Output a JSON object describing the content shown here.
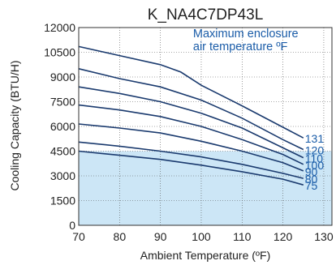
{
  "chart_data": {
    "type": "line",
    "title": "K_NA4C7DP43L",
    "xlabel": "Ambient Temperature (ºF)",
    "ylabel": "Cooling Capacity (BTU/H)",
    "xlim": [
      70,
      132
    ],
    "ylim": [
      0,
      12000
    ],
    "x_ticks": [
      70,
      80,
      90,
      100,
      110,
      120,
      130
    ],
    "y_ticks": [
      0,
      1500,
      3000,
      4500,
      6000,
      7500,
      9000,
      10500,
      12000
    ],
    "grid": true,
    "shaded_region_upper": 4500,
    "annotation": {
      "lines": [
        "Maximum enclosure",
        "air temperature ºF"
      ],
      "x": 98,
      "y": 11400
    },
    "colors": {
      "line": "#1a3a6e",
      "label": "#1a5ca8",
      "shade": "#cce6f6",
      "grid": "#555555",
      "text": "#222222"
    },
    "series": [
      {
        "name": "131",
        "x": [
          70,
          80,
          90,
          95,
          100,
          110,
          120,
          125
        ],
        "values": [
          10850,
          10300,
          9750,
          9300,
          8500,
          7250,
          5950,
          5300
        ]
      },
      {
        "name": "120",
        "x": [
          70,
          80,
          90,
          100,
          110,
          120,
          125
        ],
        "values": [
          9500,
          8900,
          8400,
          7600,
          6500,
          5200,
          4600
        ]
      },
      {
        "name": "110",
        "x": [
          70,
          80,
          90,
          100,
          110,
          120,
          125
        ],
        "values": [
          8400,
          8000,
          7500,
          6800,
          5900,
          4700,
          4100
        ]
      },
      {
        "name": "100",
        "x": [
          70,
          80,
          90,
          100,
          110,
          120,
          125
        ],
        "values": [
          7300,
          7000,
          6600,
          6000,
          5200,
          4300,
          3700
        ]
      },
      {
        "name": "90",
        "x": [
          70,
          80,
          90,
          100,
          110,
          120,
          125
        ],
        "values": [
          6150,
          5900,
          5600,
          5100,
          4500,
          3800,
          3300
        ]
      },
      {
        "name": "80",
        "x": [
          70,
          80,
          90,
          100,
          110,
          120,
          125
        ],
        "values": [
          5050,
          4800,
          4500,
          4150,
          3700,
          3150,
          2850
        ]
      },
      {
        "name": "75",
        "x": [
          70,
          80,
          90,
          100,
          110,
          120,
          125
        ],
        "values": [
          4500,
          4250,
          4000,
          3650,
          3250,
          2800,
          2450
        ]
      }
    ]
  }
}
